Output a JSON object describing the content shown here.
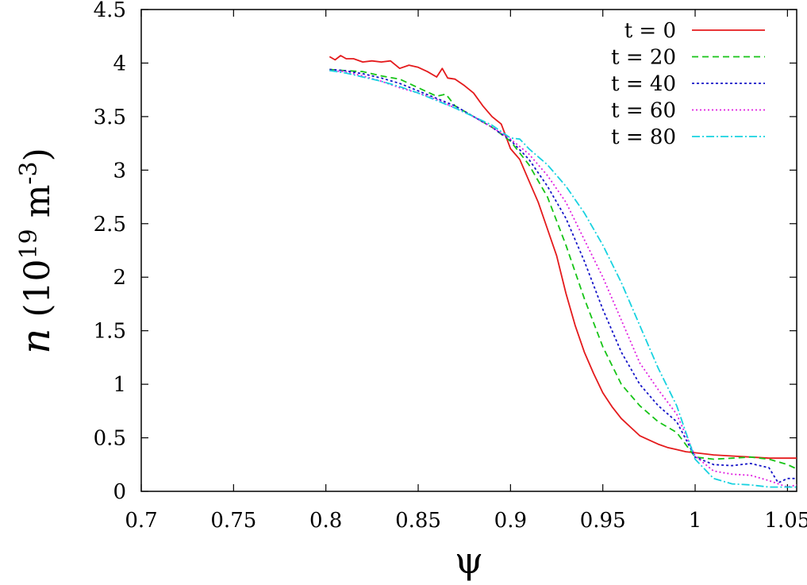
{
  "chart_data": {
    "type": "line",
    "xlabel": "ψ",
    "ylabel": {
      "var": "n",
      "open": "(10",
      "exp1": "19",
      "unit": "m",
      "exp2": "-3",
      "close": ")"
    },
    "xlim": [
      0.7,
      1.055
    ],
    "ylim": [
      0,
      4.5
    ],
    "xticks": [
      {
        "value": 0.7,
        "label": "0.7"
      },
      {
        "value": 0.75,
        "label": "0.75"
      },
      {
        "value": 0.8,
        "label": "0.8"
      },
      {
        "value": 0.85,
        "label": "0.85"
      },
      {
        "value": 0.9,
        "label": "0.9"
      },
      {
        "value": 0.95,
        "label": "0.95"
      },
      {
        "value": 1.0,
        "label": "1"
      },
      {
        "value": 1.05,
        "label": "1.05"
      }
    ],
    "yticks": [
      {
        "value": 0,
        "label": "0"
      },
      {
        "value": 0.5,
        "label": "0.5"
      },
      {
        "value": 1,
        "label": "1"
      },
      {
        "value": 1.5,
        "label": "1.5"
      },
      {
        "value": 2,
        "label": "2"
      },
      {
        "value": 2.5,
        "label": "2.5"
      },
      {
        "value": 3,
        "label": "3"
      },
      {
        "value": 3.5,
        "label": "3.5"
      },
      {
        "value": 4,
        "label": "4"
      },
      {
        "value": 4.5,
        "label": "4.5"
      }
    ],
    "legend_position": "top-right",
    "grid": false,
    "series": [
      {
        "name": "t = 0",
        "color": "#e41a1c",
        "dash": "",
        "x": [
          0.802,
          0.805,
          0.808,
          0.811,
          0.815,
          0.82,
          0.825,
          0.83,
          0.835,
          0.84,
          0.845,
          0.85,
          0.855,
          0.86,
          0.863,
          0.866,
          0.87,
          0.875,
          0.88,
          0.885,
          0.89,
          0.895,
          0.9,
          0.905,
          0.91,
          0.915,
          0.92,
          0.925,
          0.93,
          0.935,
          0.94,
          0.945,
          0.95,
          0.955,
          0.96,
          0.965,
          0.97,
          0.975,
          0.98,
          0.985,
          0.99,
          0.995,
          1.0,
          1.01,
          1.02,
          1.03,
          1.04,
          1.05,
          1.055
        ],
        "y": [
          4.06,
          4.03,
          4.07,
          4.04,
          4.04,
          4.01,
          4.02,
          4.01,
          4.02,
          3.95,
          3.98,
          3.96,
          3.92,
          3.87,
          3.95,
          3.86,
          3.85,
          3.79,
          3.72,
          3.6,
          3.5,
          3.43,
          3.2,
          3.1,
          2.9,
          2.7,
          2.45,
          2.2,
          1.85,
          1.55,
          1.3,
          1.1,
          0.92,
          0.79,
          0.68,
          0.6,
          0.52,
          0.48,
          0.44,
          0.41,
          0.39,
          0.37,
          0.36,
          0.34,
          0.33,
          0.32,
          0.31,
          0.31,
          0.31
        ]
      },
      {
        "name": "t = 20",
        "color": "#17c417",
        "dash": "8 5",
        "x": [
          0.802,
          0.81,
          0.82,
          0.83,
          0.84,
          0.85,
          0.86,
          0.865,
          0.87,
          0.88,
          0.89,
          0.9,
          0.91,
          0.92,
          0.93,
          0.94,
          0.95,
          0.96,
          0.97,
          0.98,
          0.99,
          1.0,
          1.01,
          1.02,
          1.03,
          1.04,
          1.05,
          1.055
        ],
        "y": [
          3.94,
          3.93,
          3.92,
          3.88,
          3.85,
          3.77,
          3.69,
          3.71,
          3.6,
          3.5,
          3.4,
          3.27,
          3.05,
          2.75,
          2.3,
          1.8,
          1.35,
          1.0,
          0.8,
          0.65,
          0.55,
          0.32,
          0.3,
          0.31,
          0.32,
          0.3,
          0.25,
          0.21
        ]
      },
      {
        "name": "t = 40",
        "color": "#1515c8",
        "dash": "3 3",
        "x": [
          0.802,
          0.81,
          0.82,
          0.83,
          0.84,
          0.85,
          0.86,
          0.87,
          0.88,
          0.89,
          0.9,
          0.91,
          0.92,
          0.93,
          0.94,
          0.95,
          0.96,
          0.97,
          0.98,
          0.99,
          1.0,
          1.01,
          1.02,
          1.03,
          1.04,
          1.045,
          1.05,
          1.055
        ],
        "y": [
          3.94,
          3.93,
          3.9,
          3.86,
          3.81,
          3.74,
          3.67,
          3.6,
          3.5,
          3.4,
          3.28,
          3.1,
          2.85,
          2.55,
          2.15,
          1.7,
          1.3,
          1.0,
          0.8,
          0.65,
          0.32,
          0.25,
          0.24,
          0.26,
          0.22,
          0.08,
          0.12,
          0.12
        ]
      },
      {
        "name": "t = 60",
        "color": "#e021e0",
        "dash": "2 3",
        "x": [
          0.802,
          0.81,
          0.82,
          0.83,
          0.84,
          0.85,
          0.86,
          0.87,
          0.88,
          0.89,
          0.9,
          0.91,
          0.92,
          0.93,
          0.94,
          0.95,
          0.96,
          0.97,
          0.98,
          0.99,
          1.0,
          1.01,
          1.02,
          1.03,
          1.04,
          1.05,
          1.055
        ],
        "y": [
          3.93,
          3.92,
          3.88,
          3.83,
          3.77,
          3.72,
          3.66,
          3.58,
          3.5,
          3.4,
          3.29,
          3.15,
          2.95,
          2.7,
          2.35,
          2.0,
          1.6,
          1.2,
          0.95,
          0.72,
          0.33,
          0.19,
          0.16,
          0.15,
          0.1,
          0.04,
          0.06
        ]
      },
      {
        "name": "t = 80",
        "color": "#18d2e0",
        "dash": "10 3 2 3",
        "x": [
          0.802,
          0.81,
          0.82,
          0.83,
          0.84,
          0.85,
          0.86,
          0.87,
          0.88,
          0.89,
          0.9,
          0.905,
          0.91,
          0.92,
          0.93,
          0.94,
          0.95,
          0.96,
          0.97,
          0.98,
          0.99,
          1.0,
          1.01,
          1.02,
          1.03,
          1.04,
          1.05,
          1.055
        ],
        "y": [
          3.93,
          3.91,
          3.87,
          3.83,
          3.78,
          3.72,
          3.65,
          3.58,
          3.5,
          3.42,
          3.3,
          3.29,
          3.2,
          3.05,
          2.85,
          2.6,
          2.3,
          1.95,
          1.55,
          1.15,
          0.8,
          0.3,
          0.12,
          0.07,
          0.06,
          0.04,
          0.04,
          0.04
        ]
      }
    ]
  }
}
